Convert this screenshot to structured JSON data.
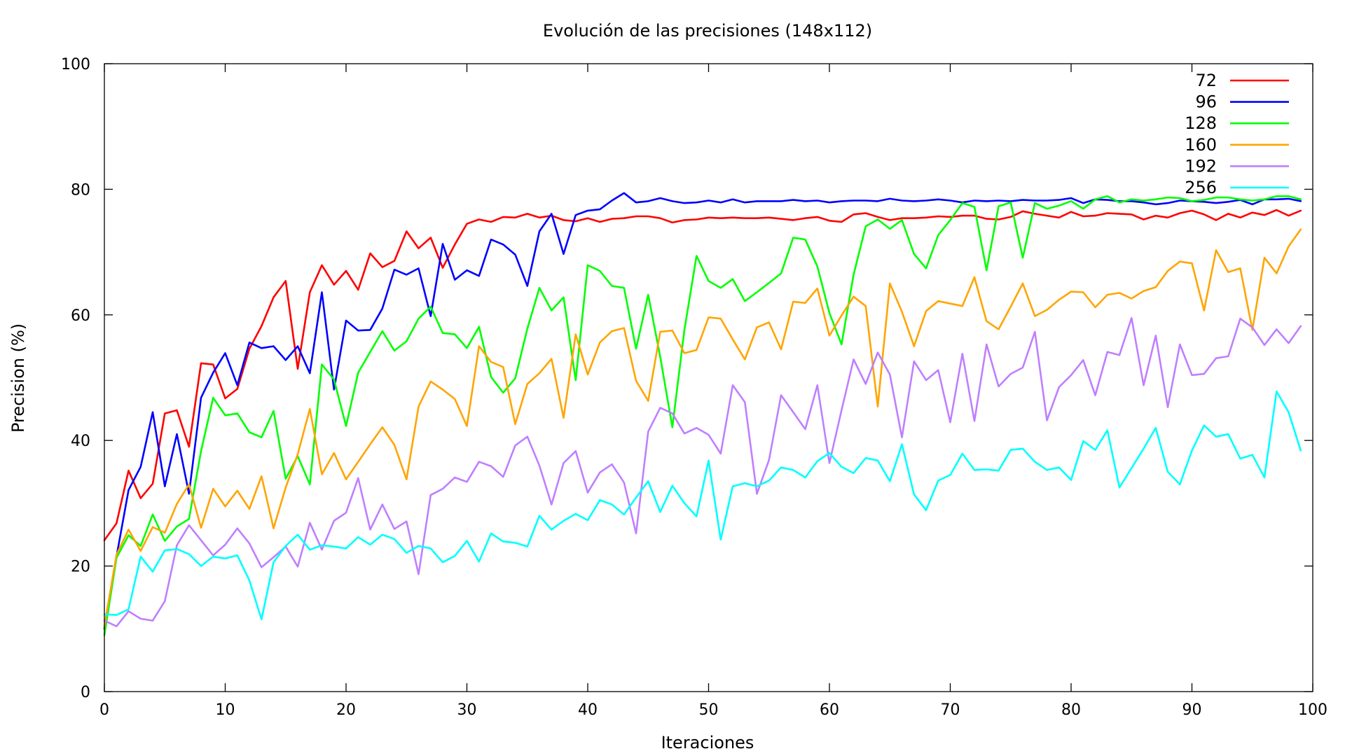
{
  "chart_data": {
    "type": "line",
    "title": "Evolución de las precisiones (148x112)",
    "xlabel": "Iteraciones",
    "ylabel": "Precision (%)",
    "xlim": [
      0,
      100
    ],
    "ylim": [
      0,
      100
    ],
    "xticks": [
      0,
      10,
      20,
      30,
      40,
      50,
      60,
      70,
      80,
      90,
      100
    ],
    "yticks": [
      0,
      20,
      40,
      60,
      80,
      100
    ],
    "grid": false,
    "legend_position": "top-right",
    "x": [
      0,
      1,
      2,
      3,
      4,
      5,
      6,
      7,
      8,
      9,
      10,
      11,
      12,
      13,
      14,
      15,
      16,
      17,
      18,
      19,
      20,
      21,
      22,
      23,
      24,
      25,
      26,
      27,
      28,
      29,
      30,
      31,
      32,
      33,
      34,
      35,
      36,
      37,
      38,
      39,
      40,
      41,
      42,
      43,
      44,
      45,
      46,
      47,
      48,
      49,
      50,
      51,
      52,
      53,
      54,
      55,
      56,
      57,
      58,
      59,
      60,
      61,
      62,
      63,
      64,
      65,
      66,
      67,
      68,
      69,
      70,
      71,
      72,
      73,
      74,
      75,
      76,
      77,
      78,
      79,
      80,
      81,
      82,
      83,
      84,
      85,
      86,
      87,
      88,
      89,
      90,
      91,
      92,
      93,
      94,
      95,
      96,
      97,
      98,
      99
    ],
    "series": [
      {
        "name": "72",
        "color": "#ff0000",
        "values": [
          24.1,
          26.8,
          35.2,
          30.8,
          33.1,
          44.3,
          44.8,
          39.0,
          52.3,
          52.1,
          46.7,
          48.2,
          54.6,
          58.2,
          62.8,
          65.4,
          51.4,
          63.6,
          67.9,
          64.8,
          67.0,
          64.0,
          69.8,
          67.6,
          68.6,
          73.3,
          70.6,
          72.3,
          67.5,
          71.2,
          74.5,
          75.2,
          74.8,
          75.6,
          75.5,
          76.1,
          75.5,
          75.8,
          75.1,
          74.9,
          75.4,
          74.8,
          75.3,
          75.4,
          75.7,
          75.7,
          75.4,
          74.7,
          75.1,
          75.2,
          75.5,
          75.4,
          75.5,
          75.4,
          75.4,
          75.5,
          75.3,
          75.1,
          75.4,
          75.6,
          75.0,
          74.8,
          76.0,
          76.2,
          75.6,
          75.1,
          75.4,
          75.4,
          75.5,
          75.7,
          75.6,
          75.8,
          75.8,
          75.3,
          75.2,
          75.6,
          76.5,
          76.1,
          75.8,
          75.5,
          76.4,
          75.7,
          75.8,
          76.2,
          76.1,
          76.0,
          75.2,
          75.8,
          75.5,
          76.2,
          76.6,
          76.0,
          75.1,
          76.1,
          75.5,
          76.3,
          75.9,
          76.7,
          75.8,
          76.6
        ]
      },
      {
        "name": "96",
        "color": "#0000ff",
        "values": [
          10.0,
          21.5,
          32.1,
          35.8,
          44.5,
          32.7,
          41.0,
          31.5,
          46.8,
          50.8,
          53.9,
          48.8,
          55.6,
          54.7,
          55.0,
          52.8,
          55.0,
          50.7,
          63.6,
          48.1,
          59.1,
          57.5,
          57.6,
          61.0,
          67.2,
          66.4,
          67.4,
          59.8,
          71.3,
          65.6,
          67.1,
          66.2,
          72.0,
          71.2,
          69.6,
          64.6,
          73.3,
          76.1,
          69.7,
          75.9,
          76.6,
          76.8,
          78.2,
          79.4,
          77.9,
          78.1,
          78.6,
          78.1,
          77.8,
          77.9,
          78.2,
          77.9,
          78.4,
          77.9,
          78.1,
          78.1,
          78.1,
          78.3,
          78.1,
          78.2,
          77.9,
          78.1,
          78.2,
          78.2,
          78.1,
          78.5,
          78.2,
          78.1,
          78.2,
          78.4,
          78.2,
          77.9,
          78.2,
          78.1,
          78.2,
          78.1,
          78.3,
          78.2,
          78.2,
          78.3,
          78.6,
          77.8,
          78.4,
          78.3,
          78.1,
          78.1,
          77.9,
          77.6,
          77.8,
          78.2,
          78.1,
          78.0,
          77.8,
          78.0,
          78.3,
          77.6,
          78.4,
          78.4,
          78.5,
          78.1
        ]
      },
      {
        "name": "128",
        "color": "#00ff00",
        "values": [
          9.0,
          21.3,
          24.9,
          23.2,
          28.2,
          24.0,
          26.3,
          27.5,
          38.3,
          46.8,
          44.0,
          44.3,
          41.3,
          40.5,
          44.7,
          33.9,
          37.5,
          33.0,
          52.1,
          49.7,
          42.3,
          50.8,
          54.1,
          57.4,
          54.3,
          55.8,
          59.4,
          61.3,
          57.1,
          56.9,
          54.7,
          58.1,
          50.1,
          47.6,
          49.9,
          57.8,
          64.3,
          60.7,
          62.8,
          49.6,
          67.9,
          67.0,
          64.6,
          64.3,
          54.6,
          63.2,
          53.3,
          42.1,
          57.6,
          69.4,
          65.4,
          64.3,
          65.7,
          62.2,
          63.6,
          65.1,
          66.6,
          72.3,
          72.0,
          67.7,
          60.3,
          55.3,
          66.4,
          74.1,
          75.2,
          73.7,
          75.1,
          69.7,
          67.4,
          72.7,
          75.1,
          77.8,
          77.2,
          67.1,
          77.3,
          77.9,
          69.1,
          77.8,
          76.9,
          77.4,
          78.1,
          76.9,
          78.4,
          78.9,
          77.9,
          78.4,
          78.2,
          78.4,
          78.7,
          78.6,
          78.1,
          78.3,
          78.7,
          78.7,
          78.4,
          78.2,
          78.4,
          78.9,
          78.9,
          78.4
        ]
      },
      {
        "name": "160",
        "color": "#ffa500",
        "values": [
          10.4,
          21.8,
          25.8,
          22.4,
          26.2,
          25.3,
          29.9,
          33.0,
          26.1,
          32.3,
          29.5,
          32.0,
          29.1,
          34.3,
          26.0,
          32.5,
          37.8,
          45.0,
          34.6,
          38.0,
          33.8,
          36.6,
          39.4,
          42.1,
          39.3,
          33.8,
          45.4,
          49.4,
          48.1,
          46.6,
          42.3,
          55.0,
          52.5,
          51.7,
          42.6,
          49.0,
          50.7,
          53.0,
          43.6,
          56.9,
          50.5,
          55.6,
          57.4,
          57.9,
          49.5,
          46.3,
          57.3,
          57.5,
          53.9,
          54.4,
          59.6,
          59.4,
          56.1,
          52.9,
          58.0,
          58.8,
          54.5,
          62.1,
          61.9,
          64.2,
          56.7,
          59.9,
          62.9,
          61.4,
          45.4,
          65.0,
          60.5,
          55.0,
          60.6,
          62.2,
          61.8,
          61.4,
          66.0,
          59.0,
          57.7,
          61.3,
          65.0,
          59.8,
          60.8,
          62.4,
          63.7,
          63.6,
          61.2,
          63.2,
          63.5,
          62.6,
          63.8,
          64.4,
          67.0,
          68.5,
          68.2,
          60.7,
          70.3,
          66.8,
          67.4,
          57.6,
          69.1,
          66.6,
          70.9,
          73.6
        ]
      },
      {
        "name": "192",
        "color": "#bf7fff",
        "values": [
          11.3,
          10.4,
          12.8,
          11.6,
          11.3,
          14.4,
          23.3,
          26.5,
          24.1,
          21.7,
          23.4,
          26.0,
          23.6,
          19.8,
          21.4,
          23.1,
          19.9,
          26.9,
          22.6,
          27.2,
          28.5,
          34.0,
          25.8,
          29.8,
          25.9,
          27.1,
          18.7,
          31.3,
          32.3,
          34.1,
          33.4,
          36.6,
          35.9,
          34.2,
          39.2,
          40.6,
          36.0,
          29.8,
          36.4,
          38.3,
          31.7,
          34.9,
          36.2,
          33.3,
          25.2,
          41.4,
          45.2,
          44.3,
          41.1,
          42.0,
          40.9,
          37.9,
          48.8,
          46.1,
          31.5,
          36.9,
          47.2,
          44.5,
          41.8,
          48.8,
          36.4,
          44.8,
          52.9,
          49.0,
          54.0,
          50.5,
          40.5,
          52.6,
          49.6,
          51.2,
          42.9,
          53.8,
          43.1,
          55.3,
          48.6,
          50.6,
          51.6,
          57.3,
          43.2,
          48.5,
          50.4,
          52.8,
          47.2,
          54.1,
          53.6,
          59.5,
          48.8,
          56.7,
          45.3,
          55.3,
          50.4,
          50.6,
          53.1,
          53.4,
          59.4,
          58.0,
          55.2,
          57.7,
          55.5,
          58.2
        ]
      },
      {
        "name": "256",
        "color": "#00ffff",
        "values": [
          12.3,
          12.2,
          13.1,
          21.5,
          19.1,
          22.5,
          22.7,
          21.9,
          20.0,
          21.5,
          21.2,
          21.7,
          17.7,
          11.5,
          20.6,
          23.2,
          25.0,
          22.6,
          23.3,
          23.1,
          22.8,
          24.6,
          23.4,
          25.0,
          24.3,
          22.1,
          23.2,
          22.8,
          20.6,
          21.6,
          24.0,
          20.7,
          25.2,
          23.9,
          23.7,
          23.1,
          28.0,
          25.8,
          27.2,
          28.3,
          27.3,
          30.5,
          29.8,
          28.2,
          30.9,
          33.5,
          28.6,
          32.8,
          30.0,
          27.9,
          36.8,
          24.2,
          32.7,
          33.2,
          32.7,
          33.6,
          35.7,
          35.3,
          34.1,
          36.7,
          38.0,
          35.8,
          34.8,
          37.2,
          36.8,
          33.5,
          39.4,
          31.4,
          28.9,
          33.6,
          34.5,
          37.9,
          35.3,
          35.4,
          35.2,
          38.5,
          38.7,
          36.6,
          35.3,
          35.7,
          33.7,
          39.9,
          38.5,
          41.6,
          32.5,
          35.6,
          38.7,
          42.0,
          35.0,
          33.0,
          38.4,
          42.4,
          40.6,
          41.0,
          37.1,
          37.7,
          34.1,
          47.8,
          44.5,
          38.4
        ]
      }
    ]
  }
}
